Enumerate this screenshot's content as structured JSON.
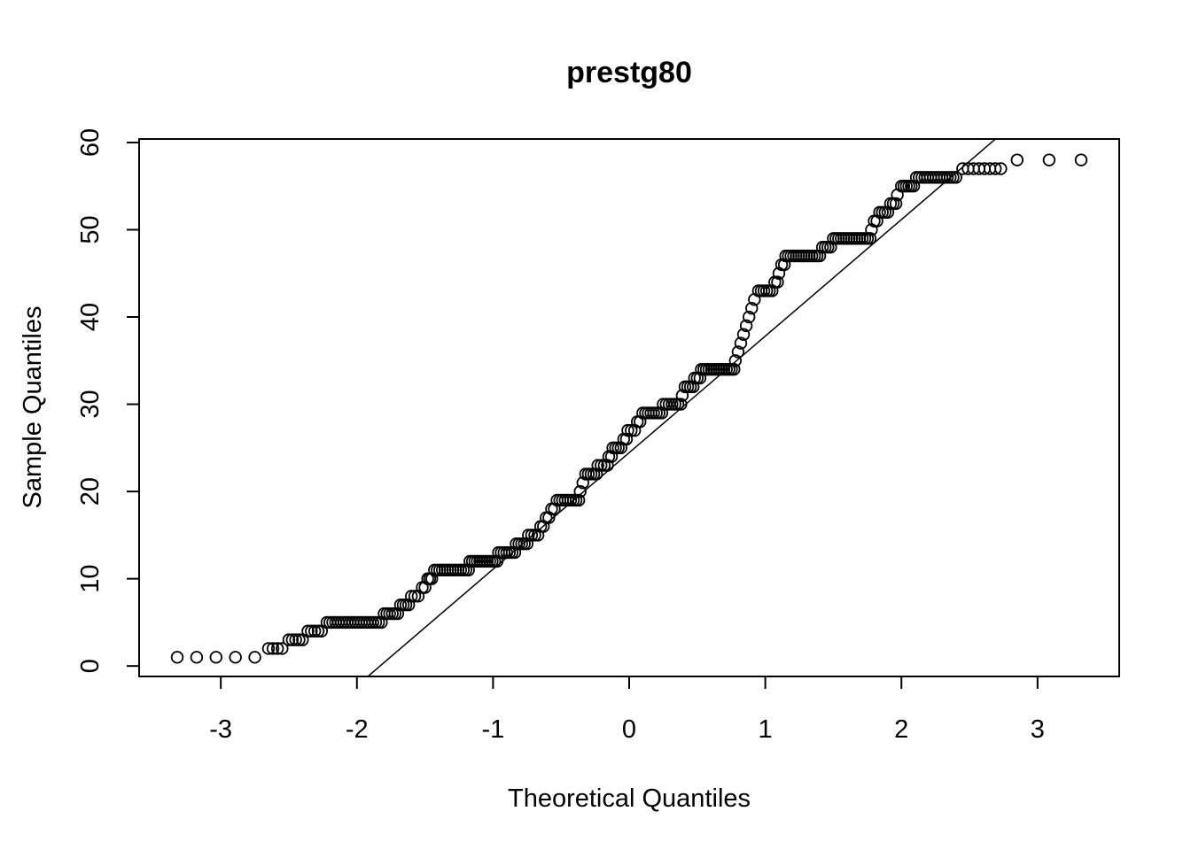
{
  "chart_data": {
    "type": "scatter",
    "title": "prestg80",
    "xlabel": "Theoretical Quantiles",
    "ylabel": "Sample Quantiles",
    "xlim": [
      -3.6,
      3.6
    ],
    "ylim": [
      -1.2,
      60.4
    ],
    "x_ticks": [
      -3,
      -2,
      -1,
      0,
      1,
      2,
      3
    ],
    "x_tick_labels": [
      "-3",
      "-2",
      "-1",
      "0",
      "1",
      "2",
      "3"
    ],
    "y_ticks": [
      0,
      10,
      20,
      30,
      40,
      50,
      60
    ],
    "y_tick_labels": [
      "0",
      "10",
      "20",
      "30",
      "40",
      "50",
      "60"
    ],
    "grid": false,
    "marker": "open-circle",
    "reference_line": {
      "slope": 13.36,
      "intercept": 24.45
    },
    "steps": [
      {
        "y": 1,
        "x_start": -3.32,
        "x_end": -2.75,
        "n": 5
      },
      {
        "y": 2,
        "x_start": -2.65,
        "x_end": -2.55,
        "n": 4
      },
      {
        "y": 3,
        "x_start": -2.5,
        "x_end": -2.4,
        "n": 5
      },
      {
        "y": 4,
        "x_start": -2.36,
        "x_end": -2.26,
        "n": 5
      },
      {
        "y": 5,
        "x_start": -2.22,
        "x_end": -1.82,
        "n": 20
      },
      {
        "y": 6,
        "x_start": -1.8,
        "x_end": -1.7,
        "n": 6
      },
      {
        "y": 7,
        "x_start": -1.68,
        "x_end": -1.62,
        "n": 4
      },
      {
        "y": 8,
        "x_start": -1.6,
        "x_end": -1.55,
        "n": 3
      },
      {
        "y": 9,
        "x_start": -1.52,
        "x_end": -1.5,
        "n": 2
      },
      {
        "y": 10,
        "x_start": -1.48,
        "x_end": -1.45,
        "n": 3
      },
      {
        "y": 11,
        "x_start": -1.43,
        "x_end": -1.18,
        "n": 14
      },
      {
        "y": 12,
        "x_start": -1.17,
        "x_end": -0.97,
        "n": 12
      },
      {
        "y": 13,
        "x_start": -0.96,
        "x_end": -0.84,
        "n": 7
      },
      {
        "y": 14,
        "x_start": -0.83,
        "x_end": -0.75,
        "n": 5
      },
      {
        "y": 15,
        "x_start": -0.74,
        "x_end": -0.67,
        "n": 4
      },
      {
        "y": 16,
        "x_start": -0.65,
        "x_end": -0.63,
        "n": 2
      },
      {
        "y": 17,
        "x_start": -0.61,
        "x_end": -0.59,
        "n": 2
      },
      {
        "y": 18,
        "x_start": -0.57,
        "x_end": -0.55,
        "n": 2
      },
      {
        "y": 19,
        "x_start": -0.53,
        "x_end": -0.37,
        "n": 9
      },
      {
        "y": 20,
        "x_start": -0.36,
        "x_end": -0.35,
        "n": 1
      },
      {
        "y": 21,
        "x_start": -0.34,
        "x_end": -0.33,
        "n": 1
      },
      {
        "y": 22,
        "x_start": -0.32,
        "x_end": -0.24,
        "n": 5
      },
      {
        "y": 23,
        "x_start": -0.23,
        "x_end": -0.16,
        "n": 4
      },
      {
        "y": 24,
        "x_start": -0.15,
        "x_end": -0.13,
        "n": 2
      },
      {
        "y": 25,
        "x_start": -0.12,
        "x_end": -0.06,
        "n": 4
      },
      {
        "y": 26,
        "x_start": -0.04,
        "x_end": -0.02,
        "n": 2
      },
      {
        "y": 27,
        "x_start": -0.01,
        "x_end": 0.04,
        "n": 3
      },
      {
        "y": 28,
        "x_start": 0.06,
        "x_end": 0.08,
        "n": 2
      },
      {
        "y": 29,
        "x_start": 0.1,
        "x_end": 0.24,
        "n": 8
      },
      {
        "y": 30,
        "x_start": 0.25,
        "x_end": 0.38,
        "n": 7
      },
      {
        "y": 31,
        "x_start": 0.39,
        "x_end": 0.4,
        "n": 1
      },
      {
        "y": 32,
        "x_start": 0.41,
        "x_end": 0.47,
        "n": 4
      },
      {
        "y": 33,
        "x_start": 0.48,
        "x_end": 0.52,
        "n": 3
      },
      {
        "y": 34,
        "x_start": 0.53,
        "x_end": 0.77,
        "n": 14
      },
      {
        "y": 35,
        "x_start": 0.78,
        "x_end": 0.79,
        "n": 1
      },
      {
        "y": 36,
        "x_start": 0.8,
        "x_end": 0.81,
        "n": 1
      },
      {
        "y": 37,
        "x_start": 0.82,
        "x_end": 0.83,
        "n": 1
      },
      {
        "y": 38,
        "x_start": 0.84,
        "x_end": 0.85,
        "n": 1
      },
      {
        "y": 39,
        "x_start": 0.86,
        "x_end": 0.87,
        "n": 1
      },
      {
        "y": 40,
        "x_start": 0.88,
        "x_end": 0.89,
        "n": 1
      },
      {
        "y": 41,
        "x_start": 0.9,
        "x_end": 0.91,
        "n": 1
      },
      {
        "y": 42,
        "x_start": 0.92,
        "x_end": 0.93,
        "n": 1
      },
      {
        "y": 43,
        "x_start": 0.95,
        "x_end": 1.05,
        "n": 6
      },
      {
        "y": 44,
        "x_start": 1.07,
        "x_end": 1.09,
        "n": 2
      },
      {
        "y": 45,
        "x_start": 1.1,
        "x_end": 1.11,
        "n": 1
      },
      {
        "y": 46,
        "x_start": 1.12,
        "x_end": 1.14,
        "n": 2
      },
      {
        "y": 47,
        "x_start": 1.15,
        "x_end": 1.4,
        "n": 14
      },
      {
        "y": 48,
        "x_start": 1.42,
        "x_end": 1.48,
        "n": 4
      },
      {
        "y": 49,
        "x_start": 1.5,
        "x_end": 1.77,
        "n": 15
      },
      {
        "y": 50,
        "x_start": 1.78,
        "x_end": 1.79,
        "n": 1
      },
      {
        "y": 51,
        "x_start": 1.8,
        "x_end": 1.82,
        "n": 2
      },
      {
        "y": 52,
        "x_start": 1.84,
        "x_end": 1.9,
        "n": 4
      },
      {
        "y": 53,
        "x_start": 1.92,
        "x_end": 1.96,
        "n": 3
      },
      {
        "y": 54,
        "x_start": 1.97,
        "x_end": 1.98,
        "n": 1
      },
      {
        "y": 55,
        "x_start": 2.0,
        "x_end": 2.09,
        "n": 6
      },
      {
        "y": 56,
        "x_start": 2.11,
        "x_end": 2.4,
        "n": 15
      },
      {
        "y": 57,
        "x_start": 2.45,
        "x_end": 2.73,
        "n": 8
      },
      {
        "y": 58,
        "x_start": 2.85,
        "x_end": 3.32,
        "n": 3
      }
    ]
  }
}
